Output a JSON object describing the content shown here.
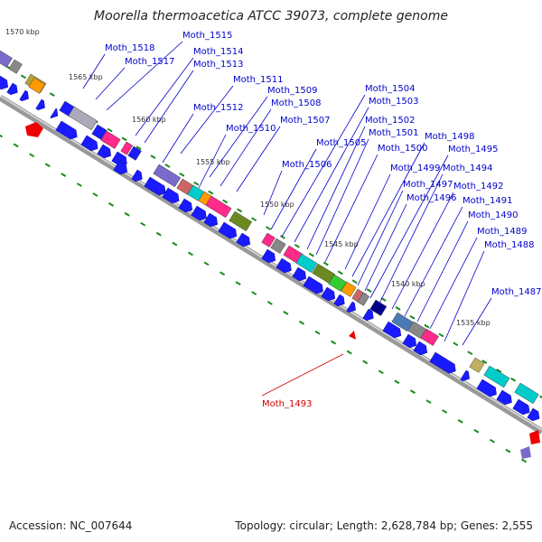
{
  "title": "Moorella thermoacetica ATCC 39073, complete genome",
  "footer": {
    "accession": "Accession: NC_007644",
    "summary": "Topology: circular; Length: 2,628,784 bp; Genes: 2,555"
  },
  "ticks": [
    "1570 kbp",
    "1565 kbp",
    "1560 kbp",
    "1555 kbp",
    "1550 kbp",
    "1545 kbp",
    "1540 kbp",
    "1535 kbp"
  ],
  "genes": [
    "Moth_1518",
    "Moth_1517",
    "Moth_1515",
    "Moth_1514",
    "Moth_1513",
    "Moth_1512",
    "Moth_1511",
    "Moth_1510",
    "Moth_1509",
    "Moth_1508",
    "Moth_1507",
    "Moth_1506",
    "Moth_1505",
    "Moth_1504",
    "Moth_1503",
    "Moth_1502",
    "Moth_1501",
    "Moth_1500",
    "Moth_1499",
    "Moth_1498",
    "Moth_1497",
    "Moth_1496",
    "Moth_1495",
    "Moth_1494",
    "Moth_1493",
    "Moth_1492",
    "Moth_1491",
    "Moth_1490",
    "Moth_1489",
    "Moth_1488",
    "Moth_1487"
  ],
  "colors": {
    "blue": "#1a1aff",
    "backbone": "#7a7a7a",
    "label_blue": "#0000cc",
    "label_red": "#cc0000",
    "tick_green": "#1a8a1a"
  }
}
